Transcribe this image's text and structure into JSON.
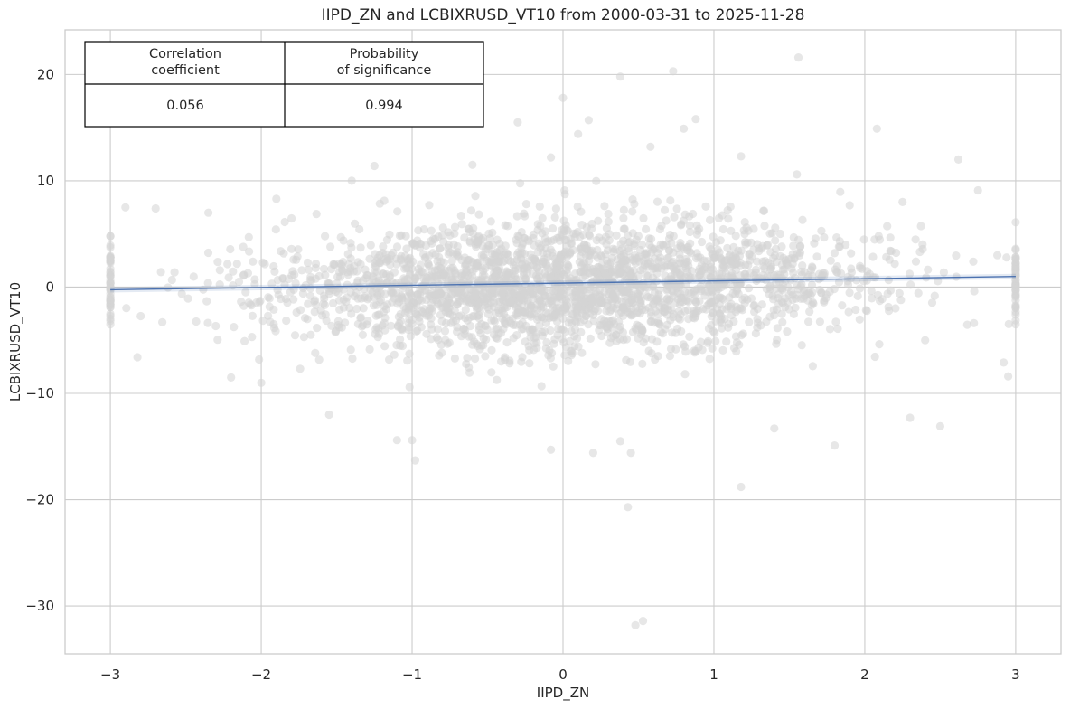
{
  "chart_data": {
    "type": "scatter",
    "title": "IIPD_ZN and LCBIXRUSD_VT10 from 2000-03-31 to 2025-11-28",
    "xlabel": "IIPD_ZN",
    "ylabel": "LCBIXRUSD_VT10",
    "xlim": [
      -3.3,
      3.3
    ],
    "ylim": [
      -34.5,
      24.2
    ],
    "x_ticks": [
      -3,
      -2,
      -1,
      0,
      1,
      2,
      3
    ],
    "x_tick_labels": [
      "−3",
      "−2",
      "−1",
      "0",
      "1",
      "2",
      "3"
    ],
    "y_ticks": [
      -30,
      -20,
      -10,
      0,
      10,
      20
    ],
    "y_tick_labels": [
      "−30",
      "−20",
      "−10",
      "0",
      "10",
      "20"
    ],
    "grid": true,
    "point_color": "#d3d3d3",
    "fit_color": "#4c72b0",
    "regression": {
      "x": [
        -3,
        3
      ],
      "y": [
        -0.25,
        1.0
      ]
    },
    "outliers": [
      {
        "x": 1.56,
        "y": 21.6
      },
      {
        "x": 0.73,
        "y": 20.3
      },
      {
        "x": 0.38,
        "y": 19.8
      },
      {
        "x": 2.08,
        "y": 14.9
      },
      {
        "x": 0.0,
        "y": 17.8
      },
      {
        "x": 0.17,
        "y": 15.7
      },
      {
        "x": 0.88,
        "y": 15.8
      },
      {
        "x": 2.62,
        "y": 12.0
      },
      {
        "x": -0.3,
        "y": 15.5
      },
      {
        "x": 0.1,
        "y": 14.4
      },
      {
        "x": 0.8,
        "y": 14.9
      },
      {
        "x": 1.18,
        "y": 12.3
      },
      {
        "x": 0.43,
        "y": -20.7
      },
      {
        "x": 1.18,
        "y": -18.8
      },
      {
        "x": 0.53,
        "y": -31.4
      },
      {
        "x": 0.48,
        "y": -31.8
      },
      {
        "x": -0.98,
        "y": -16.3
      },
      {
        "x": -1.1,
        "y": -14.4
      },
      {
        "x": -1.0,
        "y": -14.4
      },
      {
        "x": 1.8,
        "y": -14.9
      },
      {
        "x": 2.5,
        "y": -13.1
      },
      {
        "x": 2.3,
        "y": -12.3
      },
      {
        "x": -1.55,
        "y": -12.0
      },
      {
        "x": -0.08,
        "y": -15.3
      },
      {
        "x": 0.2,
        "y": -15.6
      },
      {
        "x": 0.45,
        "y": -15.6
      },
      {
        "x": 0.38,
        "y": -14.5
      },
      {
        "x": 1.4,
        "y": -13.3
      },
      {
        "x": 0.58,
        "y": 13.2
      },
      {
        "x": -0.08,
        "y": 12.2
      },
      {
        "x": 2.95,
        "y": -8.4
      },
      {
        "x": 2.92,
        "y": -7.1
      },
      {
        "x": -3.0,
        "y": -3.5
      },
      {
        "x": -3.0,
        "y": 4.8
      },
      {
        "x": 3.0,
        "y": 6.1
      },
      {
        "x": 3.0,
        "y": -3.5
      },
      {
        "x": -2.7,
        "y": 7.4
      },
      {
        "x": -2.9,
        "y": 7.5
      },
      {
        "x": -2.82,
        "y": -6.6
      },
      {
        "x": -2.2,
        "y": -8.5
      },
      {
        "x": -2.0,
        "y": -9.0
      },
      {
        "x": -2.35,
        "y": 7.0
      },
      {
        "x": 2.25,
        "y": 8.0
      },
      {
        "x": 2.75,
        "y": 9.1
      },
      {
        "x": 1.9,
        "y": 7.7
      },
      {
        "x": 2.4,
        "y": -5.0
      },
      {
        "x": 1.55,
        "y": 10.6
      },
      {
        "x": -1.9,
        "y": 8.3
      },
      {
        "x": -0.6,
        "y": 11.5
      },
      {
        "x": -1.25,
        "y": 11.4
      },
      {
        "x": -1.4,
        "y": 10.0
      }
    ]
  },
  "stats_table": {
    "headers": [
      "Correlation\ncoefficient",
      "Probability\nof significance"
    ],
    "values": [
      "0.056",
      "0.994"
    ]
  }
}
